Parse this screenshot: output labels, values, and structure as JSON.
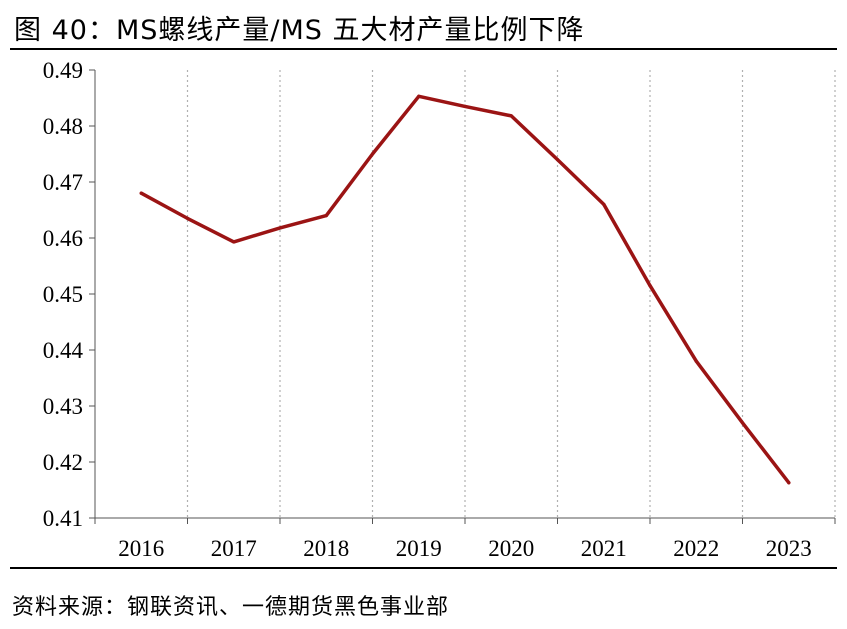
{
  "figure": {
    "title": "图 40：MS螺线产量/MS 五大材产量比例下降",
    "source": "资料来源：钢联资讯、一德期货黑色事业部"
  },
  "chart_data": {
    "type": "line",
    "title": "图 40：MS螺线产量/MS 五大材产量比例下降",
    "xlabel": "",
    "ylabel": "",
    "categories": [
      "2016",
      "2017",
      "2018",
      "2019",
      "2020",
      "2021",
      "2022",
      "2023"
    ],
    "x": [
      2016,
      2016.5,
      2017,
      2017.5,
      2018,
      2018.5,
      2019,
      2019.5,
      2020,
      2020.5,
      2021,
      2021.5,
      2022,
      2022.5,
      2023
    ],
    "series": [
      {
        "name": "MS螺线产量/MS五大材产量",
        "color": "#9b1414",
        "values": [
          0.468,
          0.4635,
          0.4593,
          0.4618,
          0.464,
          0.475,
          0.4853,
          0.4835,
          0.4818,
          0.474,
          0.466,
          0.4515,
          0.438,
          0.427,
          0.4163
        ]
      }
    ],
    "ylim": [
      0.41,
      0.49
    ],
    "yticks": [
      "0.41",
      "0.42",
      "0.43",
      "0.44",
      "0.45",
      "0.46",
      "0.47",
      "0.48",
      "0.49"
    ],
    "grid": "vertical-dotted",
    "legend": "none"
  }
}
